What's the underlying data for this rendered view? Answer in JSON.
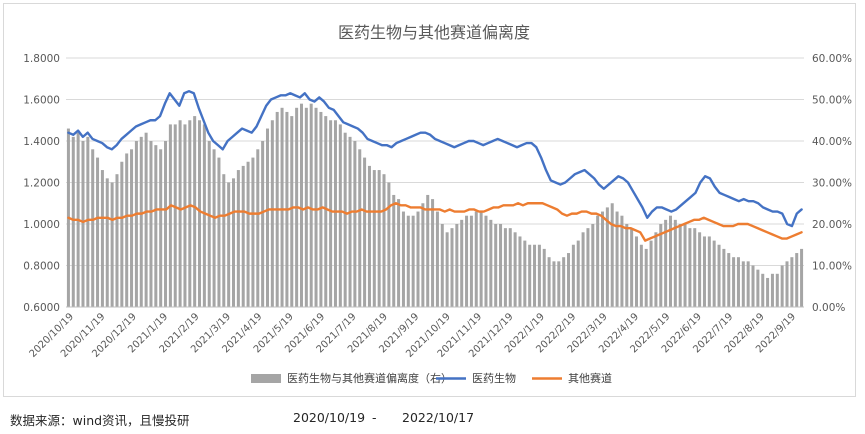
{
  "chart_data": {
    "type": "line+bar",
    "title": "医药生物与其他赛道偏离度",
    "left_axis": {
      "ylim": [
        0.6,
        1.8
      ],
      "ticks": [
        "1.8000",
        "1.6000",
        "1.4000",
        "1.2000",
        "1.0000",
        "0.8000",
        "0.6000"
      ]
    },
    "right_axis": {
      "ylim": [
        0,
        60
      ],
      "ticks": [
        "60.00%",
        "50.00%",
        "40.00%",
        "30.00%",
        "20.00%",
        "10.00%",
        "0.00%"
      ]
    },
    "x_labels": [
      "2020/10/19",
      "2020/11/19",
      "2020/12/19",
      "2021/1/19",
      "2021/2/19",
      "2021/3/19",
      "2021/4/19",
      "2021/5/19",
      "2021/6/19",
      "2021/7/19",
      "2021/8/19",
      "2021/9/19",
      "2021/10/19",
      "2021/11/19",
      "2021/12/19",
      "2022/1/19",
      "2022/2/19",
      "2022/3/19",
      "2022/4/19",
      "2022/5/19",
      "2022/6/19",
      "2022/7/19",
      "2022/8/19",
      "2022/9/19"
    ],
    "grid": true,
    "legend_position": "bottom",
    "series": [
      {
        "name": "医药生物与其他赛道偏离度（右）",
        "kind": "bar",
        "axis": "right",
        "color": "#a5a5a5",
        "values": [
          43,
          41,
          42,
          40,
          41,
          38,
          36,
          33,
          31,
          30,
          32,
          35,
          37,
          38,
          40,
          41,
          42,
          40,
          39,
          38,
          40,
          44,
          44,
          45,
          44,
          45,
          46,
          45,
          44,
          40,
          38,
          36,
          32,
          30,
          31,
          33,
          34,
          35,
          36,
          38,
          40,
          43,
          45,
          47,
          48,
          47,
          46,
          48,
          49,
          48,
          49,
          48,
          47,
          46,
          45,
          45,
          44,
          42,
          41,
          40,
          38,
          36,
          34,
          33,
          33,
          32,
          30,
          27,
          26,
          23,
          22,
          22,
          23,
          25,
          27,
          26,
          23,
          20,
          18,
          19,
          20,
          21,
          22,
          22,
          23,
          23,
          22,
          21,
          20,
          20,
          19,
          19,
          18,
          17,
          16,
          15,
          15,
          15,
          14,
          12,
          11,
          11,
          12,
          13,
          15,
          16,
          18,
          19,
          20,
          22,
          23,
          24,
          25,
          23,
          22,
          20,
          19,
          17,
          15,
          14,
          16,
          18,
          20,
          21,
          22,
          21,
          20,
          20,
          19,
          19,
          18,
          17,
          17,
          16,
          15,
          14,
          13,
          12,
          12,
          11,
          11,
          10,
          9,
          8,
          7,
          8,
          8,
          10,
          11,
          12,
          13,
          14
        ]
      },
      {
        "name": "医药生物",
        "kind": "line",
        "axis": "left",
        "color": "#4472c4",
        "values": [
          1.44,
          1.43,
          1.45,
          1.42,
          1.44,
          1.41,
          1.4,
          1.39,
          1.37,
          1.36,
          1.38,
          1.41,
          1.43,
          1.45,
          1.47,
          1.48,
          1.49,
          1.5,
          1.5,
          1.52,
          1.58,
          1.63,
          1.6,
          1.57,
          1.63,
          1.64,
          1.63,
          1.56,
          1.5,
          1.44,
          1.4,
          1.38,
          1.36,
          1.4,
          1.42,
          1.44,
          1.46,
          1.45,
          1.44,
          1.47,
          1.52,
          1.57,
          1.6,
          1.61,
          1.62,
          1.62,
          1.63,
          1.62,
          1.61,
          1.63,
          1.6,
          1.59,
          1.61,
          1.59,
          1.56,
          1.55,
          1.52,
          1.49,
          1.48,
          1.47,
          1.46,
          1.44,
          1.41,
          1.4,
          1.39,
          1.38,
          1.38,
          1.37,
          1.39,
          1.4,
          1.41,
          1.42,
          1.43,
          1.44,
          1.44,
          1.43,
          1.41,
          1.4,
          1.39,
          1.38,
          1.37,
          1.38,
          1.39,
          1.4,
          1.4,
          1.39,
          1.38,
          1.39,
          1.4,
          1.41,
          1.4,
          1.39,
          1.38,
          1.37,
          1.38,
          1.39,
          1.39,
          1.37,
          1.32,
          1.26,
          1.21,
          1.2,
          1.19,
          1.2,
          1.22,
          1.24,
          1.25,
          1.26,
          1.24,
          1.22,
          1.19,
          1.17,
          1.19,
          1.21,
          1.23,
          1.22,
          1.2,
          1.16,
          1.12,
          1.08,
          1.03,
          1.06,
          1.08,
          1.08,
          1.07,
          1.06,
          1.07,
          1.09,
          1.11,
          1.13,
          1.15,
          1.2,
          1.23,
          1.22,
          1.18,
          1.15,
          1.14,
          1.13,
          1.12,
          1.11,
          1.12,
          1.11,
          1.11,
          1.1,
          1.08,
          1.07,
          1.06,
          1.06,
          1.05,
          1.0,
          0.99,
          1.05,
          1.07
        ]
      },
      {
        "name": "其他赛道",
        "kind": "line",
        "axis": "left",
        "color": "#ed7d31",
        "values": [
          1.03,
          1.02,
          1.02,
          1.01,
          1.02,
          1.02,
          1.03,
          1.03,
          1.03,
          1.02,
          1.03,
          1.03,
          1.04,
          1.04,
          1.05,
          1.05,
          1.06,
          1.06,
          1.07,
          1.07,
          1.07,
          1.09,
          1.08,
          1.07,
          1.08,
          1.09,
          1.08,
          1.06,
          1.05,
          1.04,
          1.03,
          1.04,
          1.04,
          1.05,
          1.06,
          1.06,
          1.06,
          1.05,
          1.05,
          1.05,
          1.06,
          1.07,
          1.07,
          1.07,
          1.07,
          1.07,
          1.08,
          1.08,
          1.07,
          1.08,
          1.07,
          1.07,
          1.08,
          1.07,
          1.06,
          1.06,
          1.06,
          1.05,
          1.06,
          1.06,
          1.07,
          1.06,
          1.06,
          1.06,
          1.06,
          1.07,
          1.09,
          1.1,
          1.09,
          1.09,
          1.08,
          1.08,
          1.08,
          1.07,
          1.07,
          1.07,
          1.07,
          1.06,
          1.07,
          1.06,
          1.06,
          1.06,
          1.07,
          1.07,
          1.06,
          1.06,
          1.07,
          1.08,
          1.08,
          1.09,
          1.09,
          1.09,
          1.1,
          1.09,
          1.1,
          1.1,
          1.1,
          1.1,
          1.09,
          1.08,
          1.07,
          1.05,
          1.04,
          1.05,
          1.05,
          1.06,
          1.06,
          1.05,
          1.05,
          1.04,
          1.02,
          1.0,
          0.99,
          0.99,
          0.98,
          0.98,
          0.97,
          0.96,
          0.92,
          0.93,
          0.94,
          0.95,
          0.96,
          0.97,
          0.98,
          0.99,
          1.0,
          1.01,
          1.02,
          1.02,
          1.03,
          1.02,
          1.01,
          1.0,
          0.99,
          0.99,
          0.99,
          1.0,
          1.0,
          1.0,
          0.99,
          0.98,
          0.97,
          0.96,
          0.95,
          0.94,
          0.93,
          0.93,
          0.94,
          0.95,
          0.96
        ]
      }
    ]
  },
  "footer": {
    "source": "数据来源：wind资讯，且慢投研",
    "range_start": "2020/10/19",
    "range_sep": "-",
    "range_end": "2022/10/17"
  }
}
